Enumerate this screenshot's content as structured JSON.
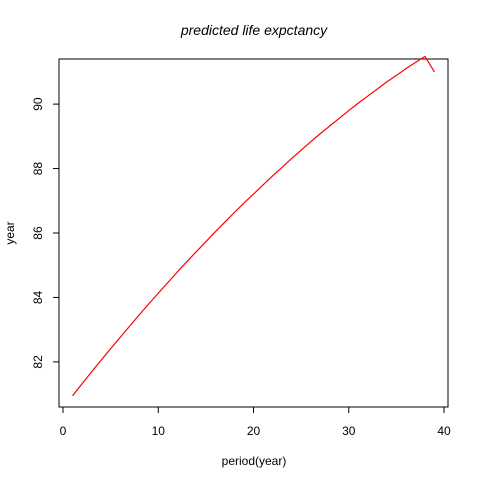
{
  "chart_data": {
    "type": "line",
    "title": "predicted life expctancy",
    "xlabel": "period(year)",
    "ylabel": "year",
    "xlim": [
      0,
      40
    ],
    "ylim": [
      80.6,
      91.4
    ],
    "x_ticks": [
      0,
      10,
      20,
      30,
      40
    ],
    "y_ticks": [
      82,
      84,
      86,
      88,
      90
    ],
    "grid": false,
    "legend": "none",
    "series": [
      {
        "color": "#ff0000",
        "x": [
          1,
          2,
          3,
          4,
          5,
          6,
          7,
          8,
          9,
          10,
          11,
          12,
          13,
          14,
          15,
          16,
          17,
          18,
          19,
          20,
          21,
          22,
          23,
          24,
          25,
          26,
          27,
          28,
          29,
          30,
          31,
          32,
          33,
          34,
          35,
          36,
          37,
          38,
          39
        ],
        "y": [
          80.95,
          81.32,
          81.69,
          82.05,
          82.41,
          82.76,
          83.11,
          83.46,
          83.8,
          84.13,
          84.46,
          84.79,
          85.11,
          85.42,
          85.73,
          86.04,
          86.34,
          86.64,
          86.93,
          87.21,
          87.49,
          87.77,
          88.04,
          88.31,
          88.57,
          88.83,
          89.08,
          89.32,
          89.56,
          89.8,
          90.03,
          90.25,
          90.47,
          90.69,
          90.89,
          91.1,
          91.29,
          91.48,
          91.0
        ]
      }
    ]
  }
}
